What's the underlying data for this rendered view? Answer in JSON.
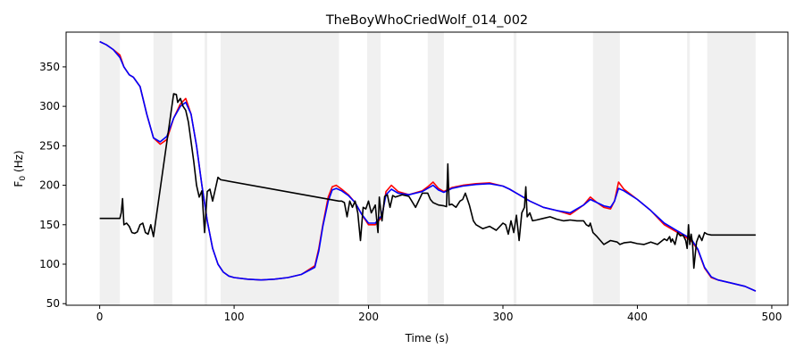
{
  "chart_data": {
    "type": "line",
    "title": "TheBoyWhoCriedWolf_014_002",
    "xlabel": "Time (s)",
    "ylabel": "F0 (Hz)",
    "ylabel_main": "F",
    "ylabel_sub": "0",
    "ylabel_unit": " (Hz)",
    "xlim": [
      -25,
      512
    ],
    "ylim": [
      48,
      394
    ],
    "xticks": [
      0,
      100,
      200,
      300,
      400,
      500
    ],
    "yticks": [
      50,
      100,
      150,
      200,
      250,
      300,
      350
    ],
    "grid": false,
    "legend": "none",
    "shaded_regions": [
      [
        0,
        15
      ],
      [
        40,
        54
      ],
      [
        78,
        80
      ],
      [
        90,
        178
      ],
      [
        199,
        209
      ],
      [
        244,
        256
      ],
      [
        308,
        310
      ],
      [
        367,
        387
      ],
      [
        437,
        439
      ],
      [
        452,
        488
      ]
    ],
    "series": [
      {
        "color": "#ff0000",
        "x": [
          0,
          5,
          10,
          15,
          18,
          22,
          25,
          30,
          35,
          40,
          45,
          50,
          55,
          60,
          64,
          68,
          72,
          76,
          80,
          84,
          88,
          92,
          96,
          100,
          110,
          120,
          130,
          140,
          150,
          160,
          163,
          166,
          170,
          173,
          176,
          180,
          185,
          190,
          195,
          200,
          205,
          210,
          213,
          217,
          222,
          230,
          240,
          244,
          248,
          252,
          256,
          262,
          270,
          280,
          290,
          300,
          305,
          310,
          315,
          320,
          330,
          340,
          350,
          360,
          365,
          370,
          375,
          380,
          383,
          386,
          390,
          400,
          410,
          420,
          430,
          440,
          445,
          450,
          455,
          460,
          470,
          480,
          488
        ],
        "y": [
          382,
          378,
          372,
          365,
          350,
          340,
          337,
          325,
          290,
          260,
          252,
          258,
          285,
          303,
          310,
          290,
          250,
          200,
          155,
          120,
          100,
          90,
          85,
          83,
          81,
          80,
          81,
          83,
          87,
          98,
          120,
          150,
          185,
          198,
          200,
          195,
          188,
          178,
          163,
          150,
          150,
          160,
          192,
          200,
          192,
          188,
          193,
          198,
          204,
          196,
          192,
          197,
          200,
          202,
          203,
          199,
          195,
          190,
          185,
          180,
          172,
          168,
          163,
          175,
          185,
          178,
          172,
          170,
          180,
          204,
          195,
          182,
          168,
          150,
          140,
          130,
          118,
          95,
          83,
          80,
          76,
          72,
          66
        ]
      },
      {
        "color": "#0000ff",
        "x": [
          0,
          5,
          10,
          15,
          18,
          22,
          25,
          30,
          35,
          40,
          45,
          50,
          55,
          60,
          64,
          68,
          72,
          76,
          80,
          84,
          88,
          92,
          96,
          100,
          110,
          120,
          130,
          140,
          150,
          160,
          163,
          166,
          170,
          173,
          176,
          180,
          185,
          190,
          195,
          200,
          205,
          210,
          213,
          217,
          222,
          230,
          240,
          244,
          248,
          252,
          256,
          262,
          270,
          280,
          290,
          300,
          305,
          310,
          315,
          320,
          330,
          340,
          350,
          360,
          365,
          370,
          375,
          380,
          383,
          386,
          390,
          400,
          410,
          420,
          430,
          440,
          445,
          450,
          455,
          460,
          470,
          480,
          488
        ],
        "y": [
          382,
          378,
          372,
          362,
          350,
          340,
          337,
          325,
          290,
          260,
          255,
          262,
          285,
          300,
          305,
          290,
          250,
          200,
          155,
          120,
          100,
          90,
          85,
          83,
          81,
          80,
          81,
          83,
          87,
          96,
          117,
          148,
          180,
          194,
          196,
          193,
          187,
          178,
          163,
          152,
          152,
          162,
          188,
          195,
          190,
          188,
          192,
          196,
          200,
          194,
          191,
          196,
          199,
          201,
          202,
          199,
          195,
          190,
          185,
          180,
          172,
          168,
          165,
          175,
          182,
          178,
          174,
          172,
          180,
          196,
          193,
          182,
          168,
          152,
          142,
          132,
          119,
          96,
          84,
          80,
          76,
          72,
          66
        ]
      },
      {
        "color": "#000000",
        "x": [
          0,
          15,
          16,
          17,
          18,
          20,
          22,
          24,
          26,
          28,
          30,
          32,
          34,
          36,
          38,
          40,
          55,
          57,
          58,
          60,
          62,
          64,
          66,
          68,
          70,
          72,
          74,
          76,
          78,
          80,
          82,
          84,
          86,
          88,
          90,
          178,
          180,
          182,
          184,
          186,
          188,
          190,
          192,
          194,
          196,
          198,
          200,
          202,
          205,
          207,
          208,
          210,
          212,
          214,
          216,
          218,
          220,
          225,
          230,
          235,
          240,
          244,
          246,
          248,
          252,
          256,
          258,
          259,
          260,
          262,
          265,
          268,
          270,
          272,
          275,
          278,
          280,
          285,
          290,
          295,
          300,
          302,
          304,
          306,
          308,
          310,
          312,
          314,
          316,
          317,
          318,
          320,
          322,
          325,
          330,
          335,
          340,
          345,
          350,
          355,
          360,
          362,
          364,
          365,
          367,
          370,
          375,
          380,
          385,
          387,
          390,
          395,
          400,
          405,
          410,
          415,
          420,
          422,
          424,
          425,
          426,
          428,
          430,
          432,
          434,
          436,
          437,
          438,
          439,
          440,
          441,
          442,
          444,
          446,
          448,
          450,
          452,
          455,
          460,
          470,
          480,
          488
        ],
        "y": [
          158,
          158,
          165,
          183,
          150,
          152,
          148,
          140,
          139,
          141,
          150,
          152,
          140,
          138,
          150,
          135,
          316,
          315,
          305,
          310,
          300,
          295,
          280,
          255,
          230,
          200,
          185,
          193,
          140,
          192,
          195,
          180,
          195,
          210,
          207,
          180,
          180,
          178,
          160,
          180,
          172,
          180,
          165,
          130,
          172,
          170,
          180,
          165,
          175,
          140,
          185,
          155,
          186,
          188,
          172,
          187,
          185,
          188,
          186,
          172,
          190,
          190,
          182,
          178,
          175,
          174,
          173,
          227,
          175,
          176,
          172,
          180,
          182,
          190,
          175,
          155,
          150,
          145,
          148,
          143,
          152,
          150,
          138,
          155,
          140,
          162,
          130,
          165,
          172,
          198,
          160,
          165,
          155,
          156,
          158,
          160,
          157,
          155,
          156,
          155,
          155,
          150,
          148,
          152,
          140,
          135,
          125,
          130,
          128,
          125,
          127,
          128,
          126,
          125,
          128,
          125,
          132,
          130,
          135,
          128,
          132,
          125,
          140,
          136,
          137,
          130,
          120,
          150,
          125,
          138,
          127,
          95,
          128,
          137,
          130,
          140,
          138,
          137,
          137,
          137,
          137,
          137
        ]
      }
    ]
  }
}
